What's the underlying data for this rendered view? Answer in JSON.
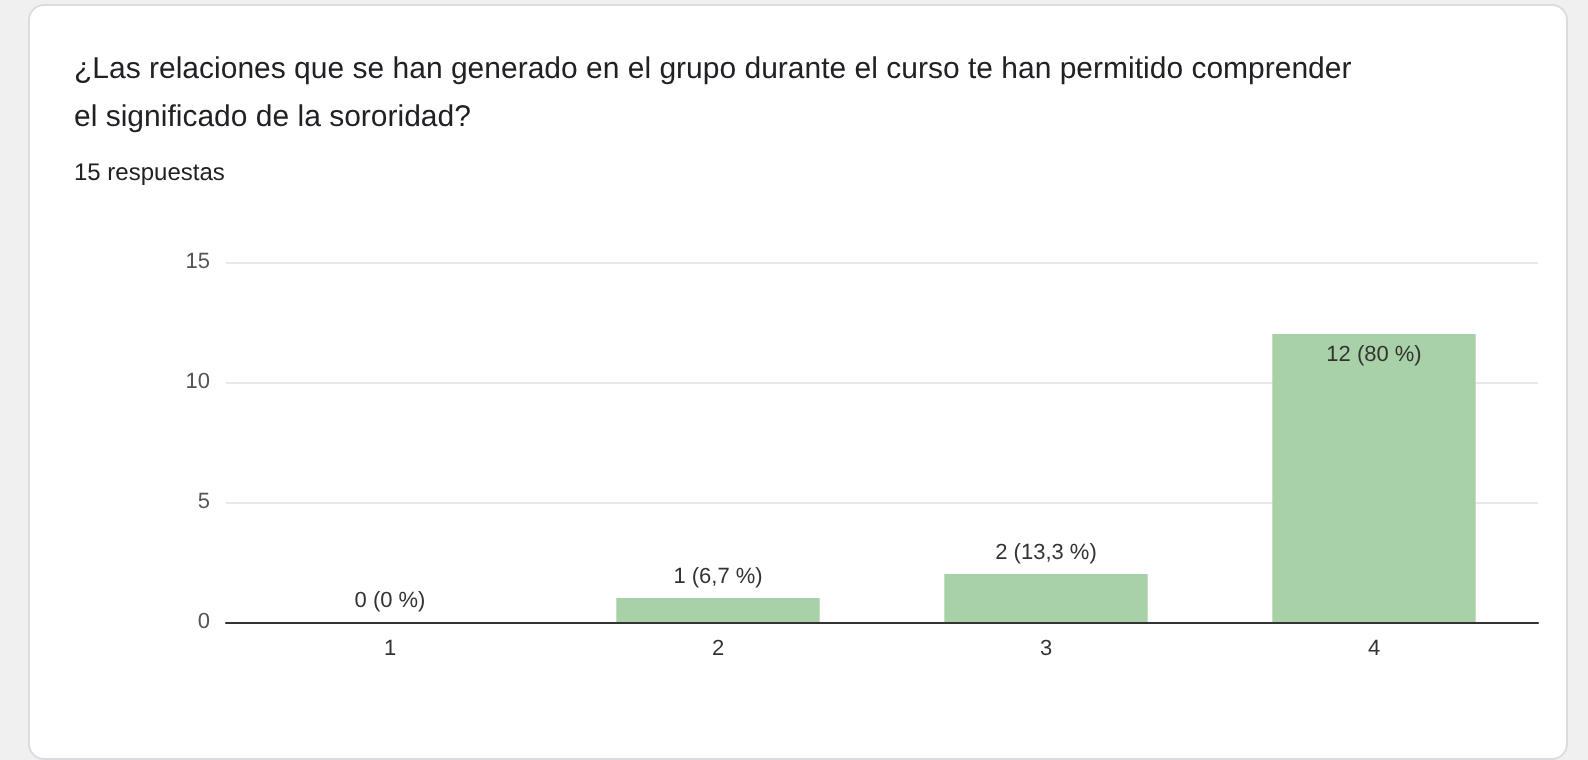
{
  "chart_data": {
    "type": "bar",
    "title": "¿Las relaciones que se han generado en el grupo durante el curso te han permitido comprender el significado de la sororidad?",
    "subtitle": "15 respuestas",
    "categories": [
      "1",
      "2",
      "3",
      "4"
    ],
    "values": [
      0,
      1,
      2,
      12
    ],
    "value_labels": [
      "0 (0 %)",
      "1 (6,7 %)",
      "2 (13,3 %)",
      "12 (80 %)"
    ],
    "color": "#a8d1a8",
    "ylim": [
      0,
      15
    ],
    "yticks": [
      0,
      5,
      10,
      15
    ],
    "grid": "y"
  }
}
